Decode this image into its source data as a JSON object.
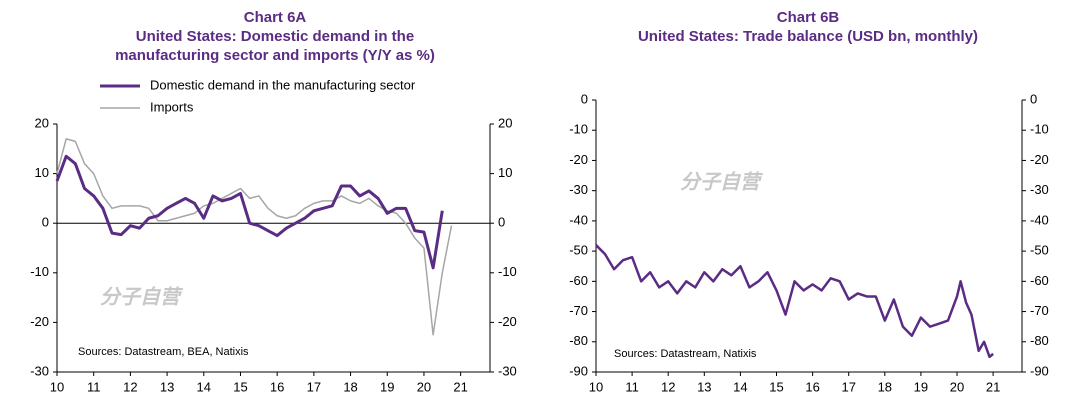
{
  "chart_data": [
    {
      "type": "line",
      "title": "Chart 6A",
      "subtitle": [
        "United States: Domestic demand in the",
        "manufacturing sector and imports (Y/Y as %)"
      ],
      "source": "Sources:  Datastream,  BEA, Natixis",
      "watermark": "分子自营",
      "xlim": [
        10,
        21.8
      ],
      "xticks": [
        10,
        11,
        12,
        13,
        14,
        15,
        16,
        17,
        18,
        19,
        20,
        21
      ],
      "ylim": [
        -30,
        20
      ],
      "yticks": [
        -30,
        -20,
        -10,
        0,
        10,
        20
      ],
      "series": [
        {
          "name": "Domestic demand in the manufacturing sector",
          "color": "#5b2c83",
          "width": 3,
          "x": [
            10.0,
            10.25,
            10.5,
            10.75,
            11.0,
            11.25,
            11.5,
            11.75,
            12.0,
            12.25,
            12.5,
            12.75,
            13.0,
            13.25,
            13.5,
            13.75,
            14.0,
            14.25,
            14.5,
            14.75,
            15.0,
            15.25,
            15.5,
            15.75,
            16.0,
            16.25,
            16.5,
            16.75,
            17.0,
            17.25,
            17.5,
            17.75,
            18.0,
            18.25,
            18.5,
            18.75,
            19.0,
            19.25,
            19.5,
            19.75,
            20.0,
            20.25,
            20.5
          ],
          "values": [
            8.5,
            13.5,
            12,
            7,
            5.5,
            3,
            -2,
            -2.3,
            -0.5,
            -1,
            1,
            1.5,
            3,
            4,
            5,
            4,
            1,
            5.5,
            4.5,
            5,
            6,
            0,
            -0.5,
            -1.5,
            -2.5,
            -1,
            0,
            1,
            2.5,
            3,
            3.5,
            7.5,
            7.5,
            5.5,
            6.5,
            5,
            2,
            3,
            3,
            -1.5,
            -1.8,
            -9,
            2.5
          ]
        },
        {
          "name": "Imports",
          "color": "#a6a6a6",
          "width": 1.5,
          "x": [
            10.0,
            10.25,
            10.5,
            10.75,
            11.0,
            11.25,
            11.5,
            11.75,
            12.0,
            12.25,
            12.5,
            12.75,
            13.0,
            13.25,
            13.5,
            13.75,
            14.0,
            14.25,
            14.5,
            14.75,
            15.0,
            15.25,
            15.5,
            15.75,
            16.0,
            16.25,
            16.5,
            16.75,
            17.0,
            17.25,
            17.5,
            17.75,
            18.0,
            18.25,
            18.5,
            18.75,
            19.0,
            19.25,
            19.5,
            19.75,
            20.0,
            20.25,
            20.5,
            20.75
          ],
          "values": [
            10,
            17,
            16.5,
            12,
            10,
            5.5,
            3,
            3.5,
            3.5,
            3.5,
            3,
            0.5,
            0.5,
            1,
            1.5,
            2,
            3.5,
            4,
            5,
            6,
            7,
            5,
            5.5,
            3,
            1.5,
            1,
            1.5,
            3,
            4,
            4.5,
            4.5,
            5.5,
            4.5,
            4,
            5,
            3.5,
            2.5,
            2,
            0,
            -3,
            -5,
            -22.5,
            -10,
            -0.5
          ]
        }
      ]
    },
    {
      "type": "line",
      "title": "Chart 6B",
      "subtitle": [
        "United States: Trade balance (USD bn, monthly)"
      ],
      "source": "Sources: Datastream,  Natixis",
      "watermark": "分子自营",
      "xlim": [
        10,
        21.8
      ],
      "xticks": [
        10,
        11,
        12,
        13,
        14,
        15,
        16,
        17,
        18,
        19,
        20,
        21
      ],
      "ylim": [
        -90,
        0
      ],
      "yticks": [
        -90,
        -80,
        -70,
        -60,
        -50,
        -40,
        -30,
        -20,
        -10,
        0
      ],
      "series": [
        {
          "name": "Trade balance",
          "color": "#5b2c83",
          "width": 2.5,
          "x": [
            10.0,
            10.25,
            10.5,
            10.75,
            11.0,
            11.25,
            11.5,
            11.75,
            12.0,
            12.25,
            12.5,
            12.75,
            13.0,
            13.25,
            13.5,
            13.75,
            14.0,
            14.25,
            14.5,
            14.75,
            15.0,
            15.25,
            15.5,
            15.75,
            16.0,
            16.25,
            16.5,
            16.75,
            17.0,
            17.25,
            17.5,
            17.75,
            18.0,
            18.25,
            18.5,
            18.75,
            19.0,
            19.25,
            19.5,
            19.75,
            20.0,
            20.1,
            20.25,
            20.4,
            20.6,
            20.75,
            20.9,
            21.0
          ],
          "values": [
            -48,
            -51,
            -56,
            -53,
            -52,
            -60,
            -57,
            -62,
            -60,
            -64,
            -60,
            -62,
            -57,
            -60,
            -56,
            -58,
            -55,
            -62,
            -60,
            -57,
            -63,
            -71,
            -60,
            -63,
            -61,
            -63,
            -59,
            -60,
            -66,
            -64,
            -65,
            -65,
            -73,
            -66,
            -75,
            -78,
            -72,
            -75,
            -74,
            -73,
            -65,
            -60,
            -67,
            -71,
            -83,
            -80,
            -85,
            -84
          ]
        }
      ]
    }
  ]
}
